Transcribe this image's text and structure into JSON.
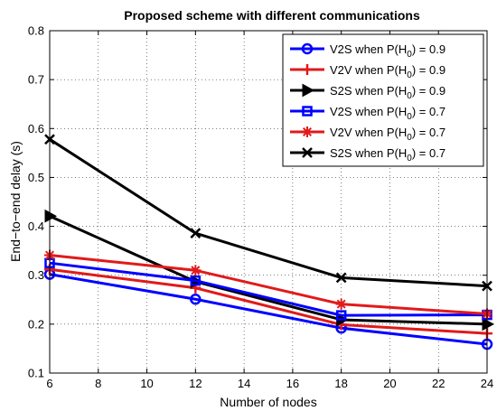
{
  "chart_data": {
    "type": "line",
    "title": "Proposed scheme with different communications",
    "xlabel": "Number of nodes",
    "ylabel": "End−to−end delay (s)",
    "xlim": [
      6,
      24
    ],
    "ylim": [
      0.1,
      0.8
    ],
    "xticks": [
      6,
      8,
      10,
      12,
      14,
      16,
      18,
      20,
      22,
      24
    ],
    "yticks": [
      0.1,
      0.2,
      0.3,
      0.4,
      0.5,
      0.6,
      0.7,
      0.8
    ],
    "grid": true,
    "legend_position": "top-right",
    "x": [
      6,
      12,
      18,
      24
    ],
    "series": [
      {
        "name": "V2S when P(H0) = 0.9",
        "legend_prefix": "V2S when P(H",
        "legend_sub": "0",
        "legend_suffix": ") = 0.9",
        "color": "#0000ff",
        "marker": "circle",
        "values": [
          0.302,
          0.251,
          0.192,
          0.159
        ]
      },
      {
        "name": "V2V when P(H0) = 0.9",
        "legend_prefix": "V2V when P(H",
        "legend_sub": "0",
        "legend_suffix": ") = 0.9",
        "color": "#e11a1a",
        "marker": "plus",
        "values": [
          0.312,
          0.274,
          0.199,
          0.181
        ]
      },
      {
        "name": "S2S when P(H0) = 0.9",
        "legend_prefix": "S2S when P(H",
        "legend_sub": "0",
        "legend_suffix": ") = 0.9",
        "color": "#000000",
        "marker": "triangle-right",
        "values": [
          0.421,
          0.287,
          0.209,
          0.2
        ]
      },
      {
        "name": "V2S when P(H0) = 0.7",
        "legend_prefix": "V2S when P(H",
        "legend_sub": "0",
        "legend_suffix": ") = 0.7",
        "color": "#0000ff",
        "marker": "square",
        "values": [
          0.325,
          0.289,
          0.218,
          0.219
        ]
      },
      {
        "name": "V2V when P(H0) = 0.7",
        "legend_prefix": "V2V when P(H",
        "legend_sub": "0",
        "legend_suffix": ") = 0.7",
        "color": "#e11a1a",
        "marker": "asterisk",
        "values": [
          0.341,
          0.31,
          0.241,
          0.221
        ]
      },
      {
        "name": "S2S when P(H0) = 0.7",
        "legend_prefix": "S2S when P(H",
        "legend_sub": "0",
        "legend_suffix": ") = 0.7",
        "color": "#000000",
        "marker": "x",
        "values": [
          0.578,
          0.386,
          0.295,
          0.278
        ]
      }
    ]
  }
}
